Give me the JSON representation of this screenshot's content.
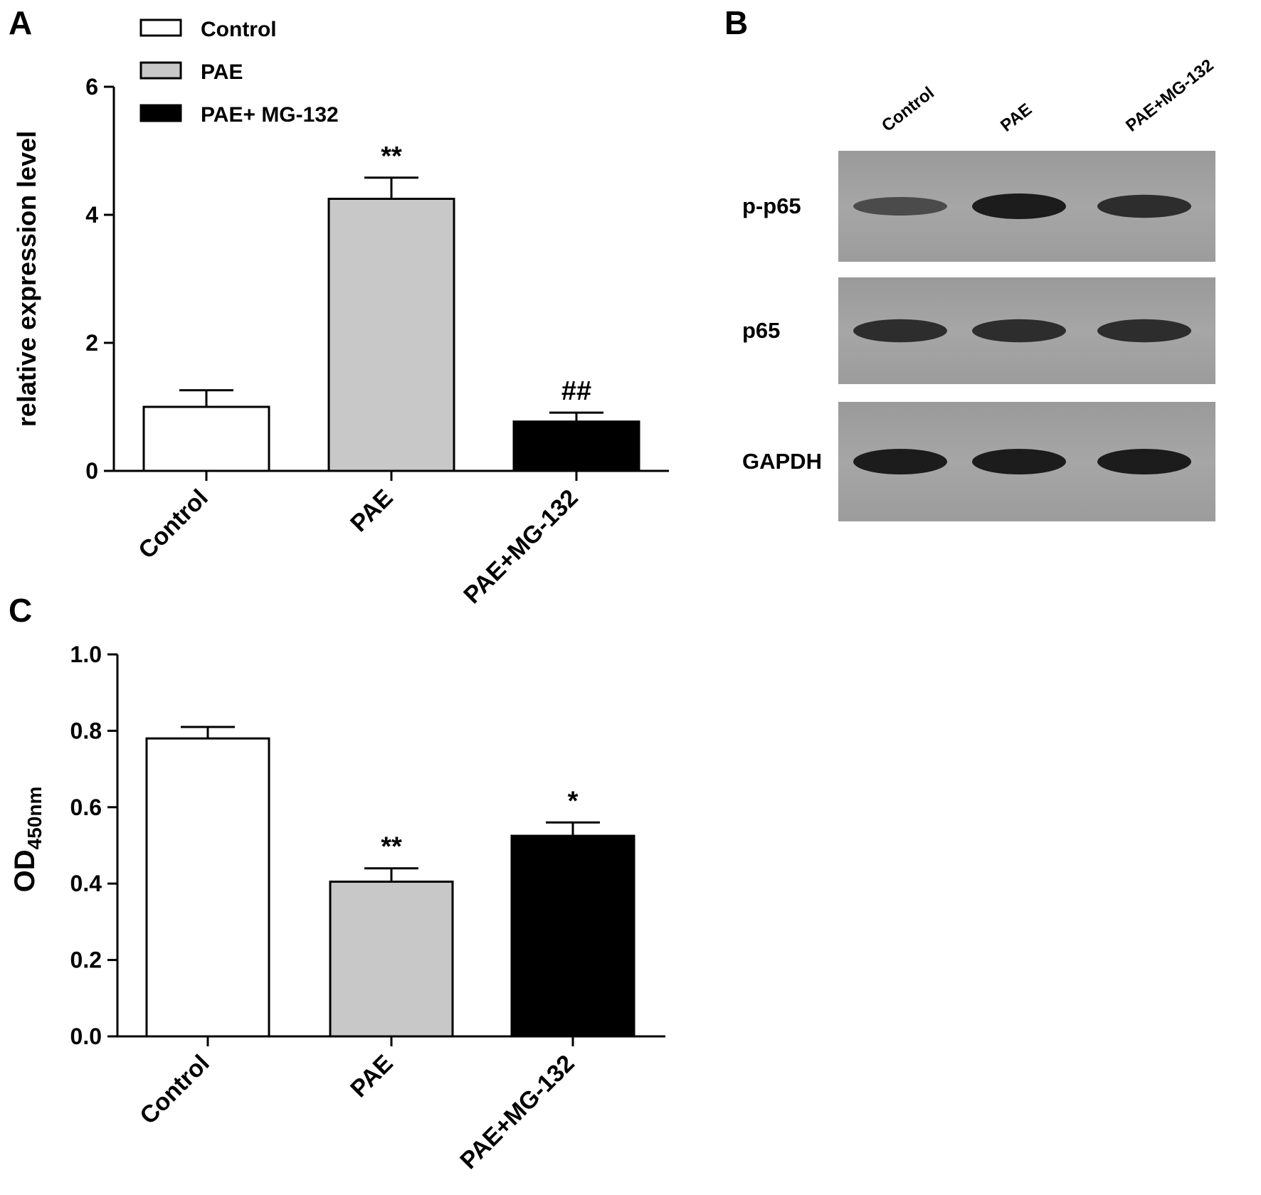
{
  "panels": {
    "A": {
      "letter": "A"
    },
    "B": {
      "letter": "B"
    },
    "C": {
      "letter": "C"
    }
  },
  "legend": [
    {
      "label": "Control",
      "color": "#ffffff"
    },
    {
      "label": "PAE",
      "color": "#c8c8c8"
    },
    {
      "label": "PAE+ MG-132",
      "color": "#000000"
    }
  ],
  "chart_data": [
    {
      "panel": "A",
      "type": "bar",
      "categories": [
        "Control",
        "PAE",
        "PAE+MG-132"
      ],
      "values": [
        1.0,
        4.25,
        0.77
      ],
      "errors": [
        0.26,
        0.33,
        0.14
      ],
      "colors": [
        "#ffffff",
        "#c8c8c8",
        "#000000"
      ],
      "significance": [
        "",
        "**",
        "##"
      ],
      "title": "",
      "xlabel": "",
      "ylabel": "relative expression level",
      "ylim": [
        0,
        6
      ],
      "yticks": [
        "0",
        "2",
        "4",
        "6"
      ],
      "grid": false,
      "legend": "top-left"
    },
    {
      "panel": "C",
      "type": "bar",
      "categories": [
        "Control",
        "PAE",
        "PAE+MG-132"
      ],
      "values": [
        0.78,
        0.405,
        0.525
      ],
      "errors": [
        0.03,
        0.035,
        0.035
      ],
      "colors": [
        "#ffffff",
        "#c8c8c8",
        "#000000"
      ],
      "significance": [
        "",
        "**",
        "*"
      ],
      "title": "",
      "xlabel": "",
      "ylabel_main": "OD",
      "ylabel_sub": "450nm",
      "ylim": [
        0,
        1.0
      ],
      "yticks": [
        "0.0",
        "0.2",
        "0.4",
        "0.6",
        "0.8",
        "1.0"
      ],
      "grid": false
    }
  ],
  "blot": {
    "lanes": [
      "Control",
      "PAE",
      "PAE+MG-132"
    ],
    "rows": [
      {
        "label": "p-p65",
        "intensity": [
          0.45,
          1.0,
          0.8
        ]
      },
      {
        "label": "p65",
        "intensity": [
          0.8,
          0.8,
          0.8
        ]
      },
      {
        "label": "GAPDH",
        "intensity": [
          1.0,
          1.0,
          1.0
        ]
      }
    ]
  }
}
